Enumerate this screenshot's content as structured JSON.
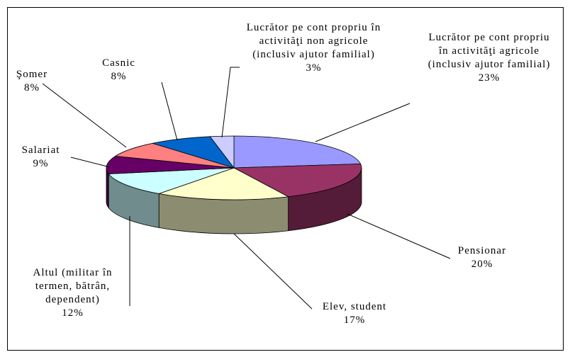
{
  "chart_data": {
    "type": "pie3d",
    "categories": [
      "Lucrător pe cont propriu în activităţi agricole (inclusiv ajutor familial)",
      "Pensionar",
      "Elev, student",
      "Altul (militar în termen, bătrân, dependent)",
      "Salariat",
      "Şomer",
      "Casnic",
      "Lucrător pe cont propriu în activităţi non agricole (inclusiv ajutor familial)"
    ],
    "values": [
      23,
      20,
      17,
      12,
      9,
      8,
      8,
      3
    ],
    "value_labels": [
      "23%",
      "20%",
      "17%",
      "12%",
      "9%",
      "8%",
      "8%",
      "3%"
    ],
    "colors": [
      "#9999ff",
      "#993366",
      "#ffffcc",
      "#ccffff",
      "#660066",
      "#ff8080",
      "#0066cc",
      "#ccccff"
    ]
  }
}
